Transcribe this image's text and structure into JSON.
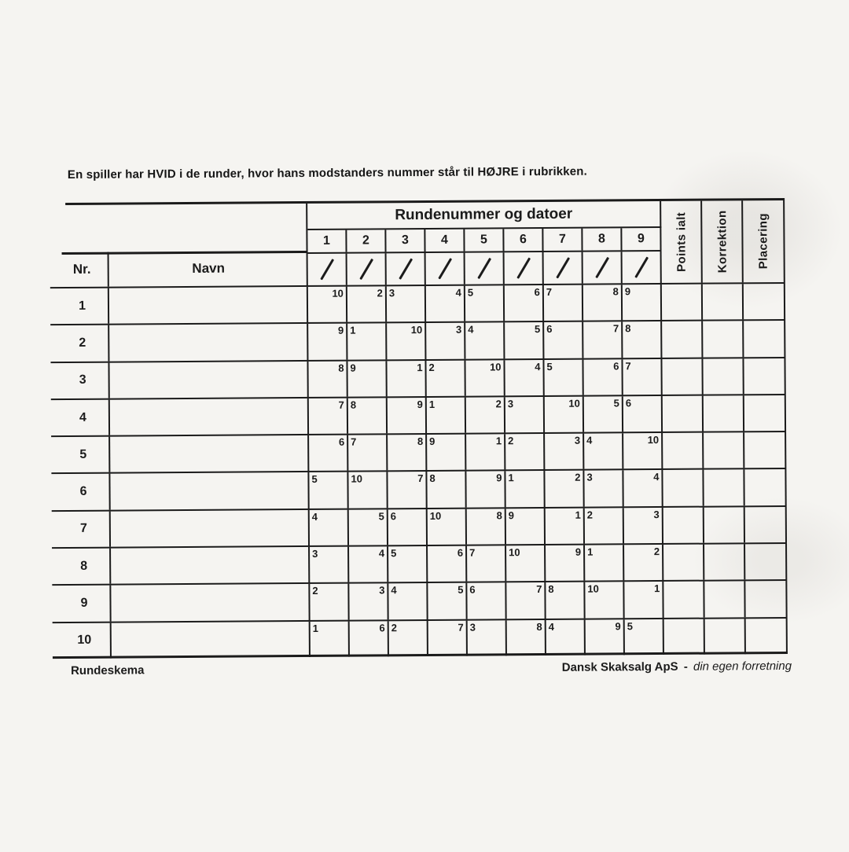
{
  "instruction": "En spiller har HVID i de runder, hvor hans modstanders nummer står til HØJRE i rubrikken.",
  "colors": {
    "ink": "#1b1b1b",
    "paper": "#f5f4f1"
  },
  "table": {
    "nr_header": "Nr.",
    "navn_header": "Navn",
    "rounds_title": "Rundenummer og datoer",
    "round_numbers": [
      "1",
      "2",
      "3",
      "4",
      "5",
      "6",
      "7",
      "8",
      "9"
    ],
    "right_columns": [
      "Points ialt",
      "Korrektion",
      "Placering"
    ],
    "side_legend": {
      "right": "player has white",
      "left": "player has black"
    },
    "rows": [
      {
        "nr": "1",
        "opponents": [
          {
            "n": "10",
            "side": "right"
          },
          {
            "n": "2",
            "side": "right"
          },
          {
            "n": "3",
            "side": "left"
          },
          {
            "n": "4",
            "side": "right"
          },
          {
            "n": "5",
            "side": "left"
          },
          {
            "n": "6",
            "side": "right"
          },
          {
            "n": "7",
            "side": "left"
          },
          {
            "n": "8",
            "side": "right"
          },
          {
            "n": "9",
            "side": "left"
          }
        ]
      },
      {
        "nr": "2",
        "opponents": [
          {
            "n": "9",
            "side": "right"
          },
          {
            "n": "1",
            "side": "left"
          },
          {
            "n": "10",
            "side": "right"
          },
          {
            "n": "3",
            "side": "right"
          },
          {
            "n": "4",
            "side": "left"
          },
          {
            "n": "5",
            "side": "right"
          },
          {
            "n": "6",
            "side": "left"
          },
          {
            "n": "7",
            "side": "right"
          },
          {
            "n": "8",
            "side": "left"
          }
        ]
      },
      {
        "nr": "3",
        "opponents": [
          {
            "n": "8",
            "side": "right"
          },
          {
            "n": "9",
            "side": "left"
          },
          {
            "n": "1",
            "side": "right"
          },
          {
            "n": "2",
            "side": "left"
          },
          {
            "n": "10",
            "side": "right"
          },
          {
            "n": "4",
            "side": "right"
          },
          {
            "n": "5",
            "side": "left"
          },
          {
            "n": "6",
            "side": "right"
          },
          {
            "n": "7",
            "side": "left"
          }
        ]
      },
      {
        "nr": "4",
        "opponents": [
          {
            "n": "7",
            "side": "right"
          },
          {
            "n": "8",
            "side": "left"
          },
          {
            "n": "9",
            "side": "right"
          },
          {
            "n": "1",
            "side": "left"
          },
          {
            "n": "2",
            "side": "right"
          },
          {
            "n": "3",
            "side": "left"
          },
          {
            "n": "10",
            "side": "right"
          },
          {
            "n": "5",
            "side": "right"
          },
          {
            "n": "6",
            "side": "left"
          }
        ]
      },
      {
        "nr": "5",
        "opponents": [
          {
            "n": "6",
            "side": "right"
          },
          {
            "n": "7",
            "side": "left"
          },
          {
            "n": "8",
            "side": "right"
          },
          {
            "n": "9",
            "side": "left"
          },
          {
            "n": "1",
            "side": "right"
          },
          {
            "n": "2",
            "side": "left"
          },
          {
            "n": "3",
            "side": "right"
          },
          {
            "n": "4",
            "side": "left"
          },
          {
            "n": "10",
            "side": "right"
          }
        ]
      },
      {
        "nr": "6",
        "opponents": [
          {
            "n": "5",
            "side": "left"
          },
          {
            "n": "10",
            "side": "left"
          },
          {
            "n": "7",
            "side": "right"
          },
          {
            "n": "8",
            "side": "left"
          },
          {
            "n": "9",
            "side": "right"
          },
          {
            "n": "1",
            "side": "left"
          },
          {
            "n": "2",
            "side": "right"
          },
          {
            "n": "3",
            "side": "left"
          },
          {
            "n": "4",
            "side": "right"
          }
        ]
      },
      {
        "nr": "7",
        "opponents": [
          {
            "n": "4",
            "side": "left"
          },
          {
            "n": "5",
            "side": "right"
          },
          {
            "n": "6",
            "side": "left"
          },
          {
            "n": "10",
            "side": "left"
          },
          {
            "n": "8",
            "side": "right"
          },
          {
            "n": "9",
            "side": "left"
          },
          {
            "n": "1",
            "side": "right"
          },
          {
            "n": "2",
            "side": "left"
          },
          {
            "n": "3",
            "side": "right"
          }
        ]
      },
      {
        "nr": "8",
        "opponents": [
          {
            "n": "3",
            "side": "left"
          },
          {
            "n": "4",
            "side": "right"
          },
          {
            "n": "5",
            "side": "left"
          },
          {
            "n": "6",
            "side": "right"
          },
          {
            "n": "7",
            "side": "left"
          },
          {
            "n": "10",
            "side": "left"
          },
          {
            "n": "9",
            "side": "right"
          },
          {
            "n": "1",
            "side": "left"
          },
          {
            "n": "2",
            "side": "right"
          }
        ]
      },
      {
        "nr": "9",
        "opponents": [
          {
            "n": "2",
            "side": "left"
          },
          {
            "n": "3",
            "side": "right"
          },
          {
            "n": "4",
            "side": "left"
          },
          {
            "n": "5",
            "side": "right"
          },
          {
            "n": "6",
            "side": "left"
          },
          {
            "n": "7",
            "side": "right"
          },
          {
            "n": "8",
            "side": "left"
          },
          {
            "n": "10",
            "side": "left"
          },
          {
            "n": "1",
            "side": "right"
          }
        ]
      },
      {
        "nr": "10",
        "opponents": [
          {
            "n": "1",
            "side": "left"
          },
          {
            "n": "6",
            "side": "right"
          },
          {
            "n": "2",
            "side": "left"
          },
          {
            "n": "7",
            "side": "right"
          },
          {
            "n": "3",
            "side": "left"
          },
          {
            "n": "8",
            "side": "right"
          },
          {
            "n": "4",
            "side": "left"
          },
          {
            "n": "9",
            "side": "right"
          },
          {
            "n": "5",
            "side": "left"
          }
        ]
      }
    ]
  },
  "footer": {
    "left": "Rundeskema",
    "brand": "Dansk Skaksalg ApS",
    "separator": "-",
    "tagline": "din egen forretning"
  }
}
